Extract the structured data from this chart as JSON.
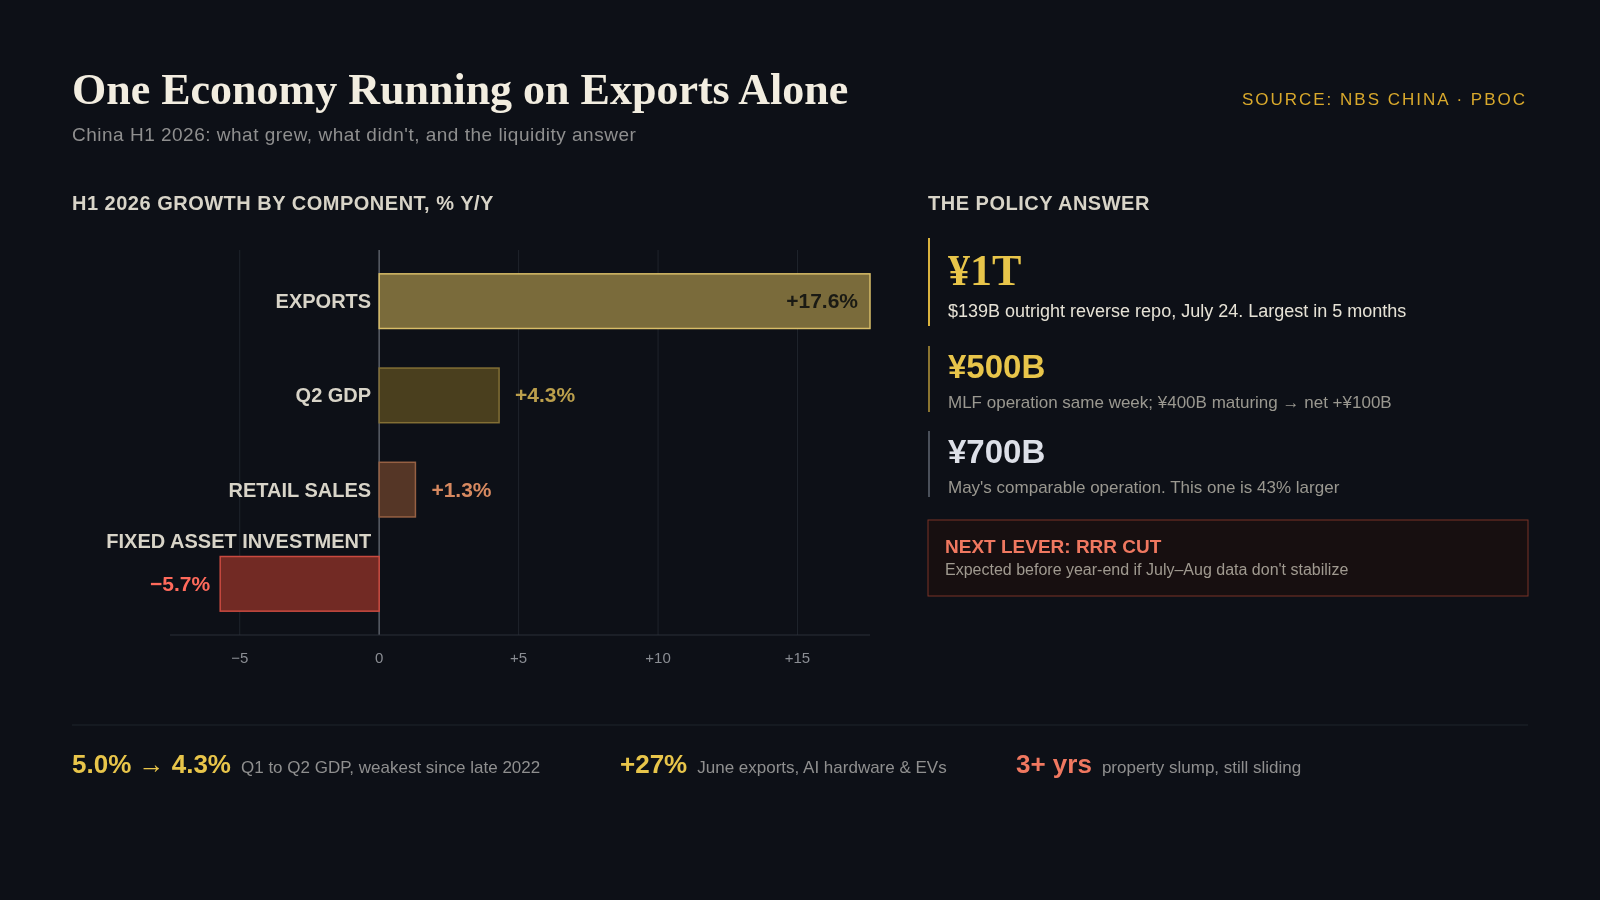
{
  "chart_data": {
    "type": "bar",
    "orientation": "horizontal",
    "title": "One Economy Running on Exports Alone",
    "subtitle": "China H1 2026: what grew, what didn't, and the liquidity answer",
    "categories": [
      "EXPORTS",
      "Q2 GDP",
      "RETAIL SALES",
      "FIXED ASSET INVESTMENT"
    ],
    "values": [
      17.6,
      4.3,
      1.3,
      -5.7
    ],
    "colors": [
      "#7a6b3b",
      "#4a3f1e",
      "#553626",
      "#722a24"
    ],
    "value_labels": [
      "+17.6%",
      "+4.3%",
      "+1.3%",
      "−5.7%"
    ],
    "xlim": [
      -7.5,
      17.6
    ],
    "xticks": [
      {
        "value": -5,
        "label": "−5"
      },
      0,
      {
        "value": 5,
        "label": "+5"
      },
      {
        "value": 10,
        "label": "+10"
      },
      {
        "value": 15,
        "label": "+15"
      }
    ],
    "grid": "x",
    "annotations": [
      "SOURCE: NBS CHINA · PBOC",
      "H1 2026 GROWTH BY COMPONENT, % Y/Y",
      "THE POLICY ANSWER",
      "¥1T",
      "$139B outright reverse repo, July 24. Largest in 5 months",
      "¥500B",
      "MLF operation same week; ¥400B maturing → net +¥100B",
      "¥700B",
      "May's comparable operation. This one is 43% larger",
      "NEXT LEVER: RRR CUT",
      "Expected before year-end if July–Aug data don't stabilize",
      "5.0% → 4.3%",
      "Q1 to Q2 GDP, weakest since late 2022",
      "+27%",
      "June exports, AI hardware & EVs",
      "3+ yrs",
      "property slump, still sliding"
    ]
  }
}
